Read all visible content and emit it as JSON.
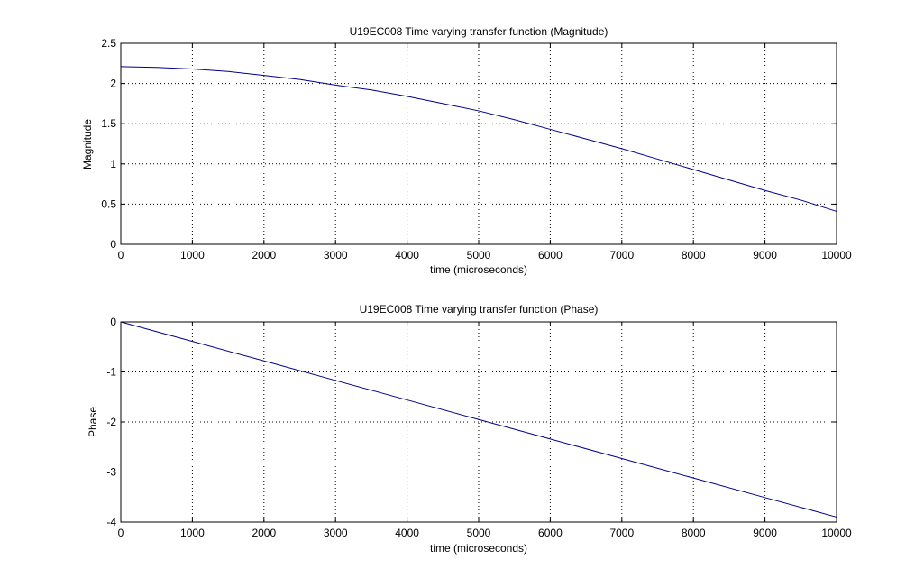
{
  "chart_data": [
    {
      "type": "line",
      "title": "U19EC008 Time varying transfer function (Magnitude)",
      "xlabel": "time (microseconds)",
      "ylabel": "Magnitude",
      "xlim": [
        0,
        10000
      ],
      "ylim": [
        0,
        2.5
      ],
      "xticks": [
        0,
        1000,
        2000,
        3000,
        4000,
        5000,
        6000,
        7000,
        8000,
        9000,
        10000
      ],
      "yticks": [
        0,
        0.5,
        1,
        1.5,
        2,
        2.5
      ],
      "xtick_labels": [
        "0",
        "1000",
        "2000",
        "3000",
        "4000",
        "5000",
        "6000",
        "7000",
        "8000",
        "9000",
        "10000"
      ],
      "ytick_labels": [
        "0",
        "0.5",
        "1",
        "1.5",
        "2",
        "2.5"
      ],
      "grid": true,
      "line_color": "#00008b",
      "series": [
        {
          "x": [
            0,
            500,
            1000,
            1500,
            2000,
            2500,
            3000,
            3500,
            4000,
            4500,
            5000,
            5500,
            6000,
            6500,
            7000,
            7500,
            8000,
            8500,
            9000,
            9500,
            10000
          ],
          "y": [
            2.21,
            2.2,
            2.18,
            2.15,
            2.1,
            2.05,
            1.98,
            1.92,
            1.84,
            1.75,
            1.66,
            1.55,
            1.43,
            1.31,
            1.19,
            1.06,
            0.93,
            0.8,
            0.67,
            0.55,
            0.41
          ]
        }
      ]
    },
    {
      "type": "line",
      "title": "U19EC008 Time varying transfer function (Phase)",
      "xlabel": "time (microseconds)",
      "ylabel": "Phase",
      "xlim": [
        0,
        10000
      ],
      "ylim": [
        -4,
        0
      ],
      "xticks": [
        0,
        1000,
        2000,
        3000,
        4000,
        5000,
        6000,
        7000,
        8000,
        9000,
        10000
      ],
      "yticks": [
        -4,
        -3,
        -2,
        -1,
        0
      ],
      "xtick_labels": [
        "0",
        "1000",
        "2000",
        "3000",
        "4000",
        "5000",
        "6000",
        "7000",
        "8000",
        "9000",
        "10000"
      ],
      "ytick_labels": [
        "-4",
        "-3",
        "-2",
        "-1",
        "0"
      ],
      "grid": true,
      "line_color": "#00008b",
      "series": [
        {
          "x": [
            0,
            1000,
            2000,
            3000,
            4000,
            5000,
            6000,
            7000,
            8000,
            9000,
            10000
          ],
          "y": [
            0,
            -0.39,
            -0.78,
            -1.17,
            -1.56,
            -1.95,
            -2.34,
            -2.73,
            -3.12,
            -3.51,
            -3.9
          ]
        }
      ]
    }
  ]
}
